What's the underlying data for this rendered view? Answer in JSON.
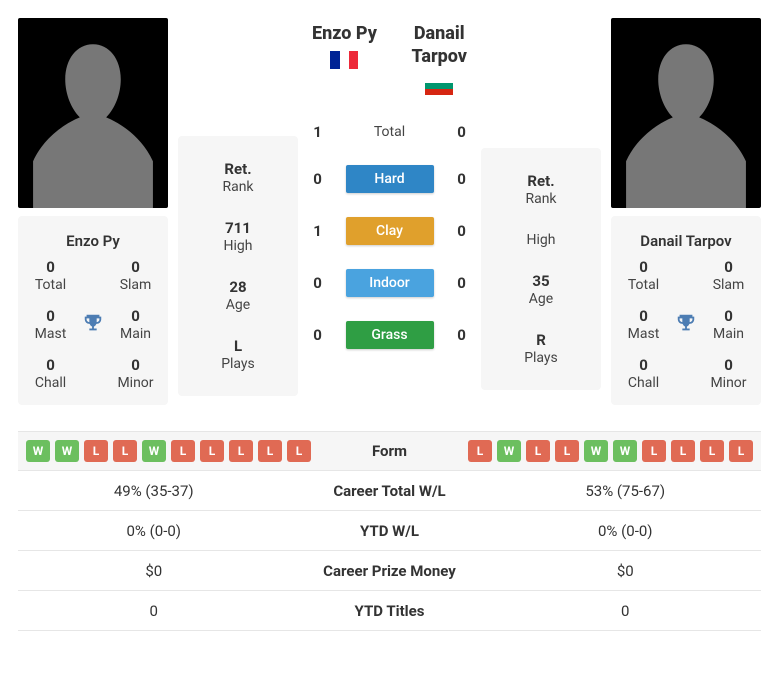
{
  "players": {
    "left": {
      "name_header": "Enzo Py",
      "flag": "fr",
      "card_name": "Enzo Py",
      "titles": {
        "total": {
          "value": "0",
          "label": "Total"
        },
        "slam": {
          "value": "0",
          "label": "Slam"
        },
        "mast": {
          "value": "0",
          "label": "Mast"
        },
        "main": {
          "value": "0",
          "label": "Main"
        },
        "chall": {
          "value": "0",
          "label": "Chall"
        },
        "minor": {
          "value": "0",
          "label": "Minor"
        }
      },
      "info": {
        "rank": {
          "value": "Ret.",
          "label": "Rank"
        },
        "high": {
          "value": "711",
          "label": "High"
        },
        "age": {
          "value": "28",
          "label": "Age"
        },
        "plays": {
          "value": "L",
          "label": "Plays"
        }
      },
      "form": [
        "W",
        "W",
        "L",
        "L",
        "W",
        "L",
        "L",
        "L",
        "L",
        "L"
      ]
    },
    "right": {
      "name_header": "Danail Tarpov",
      "name_header_l1": "Danail",
      "name_header_l2": "Tarpov",
      "flag": "bg",
      "card_name": "Danail Tarpov",
      "titles": {
        "total": {
          "value": "0",
          "label": "Total"
        },
        "slam": {
          "value": "0",
          "label": "Slam"
        },
        "mast": {
          "value": "0",
          "label": "Mast"
        },
        "main": {
          "value": "0",
          "label": "Main"
        },
        "chall": {
          "value": "0",
          "label": "Chall"
        },
        "minor": {
          "value": "0",
          "label": "Minor"
        }
      },
      "info": {
        "rank": {
          "value": "Ret.",
          "label": "Rank"
        },
        "high": {
          "value": "",
          "label": "High"
        },
        "age": {
          "value": "35",
          "label": "Age"
        },
        "plays": {
          "value": "R",
          "label": "Plays"
        }
      },
      "form": [
        "L",
        "W",
        "L",
        "L",
        "W",
        "W",
        "L",
        "L",
        "L",
        "L"
      ]
    }
  },
  "h2h": {
    "rows": [
      {
        "left": "1",
        "label": "Total",
        "right": "0",
        "pill": false
      },
      {
        "left": "0",
        "label": "Hard",
        "right": "0",
        "pill": true,
        "color": "#2f86c6"
      },
      {
        "left": "1",
        "label": "Clay",
        "right": "0",
        "pill": true,
        "color": "#e0a02c"
      },
      {
        "left": "0",
        "label": "Indoor",
        "right": "0",
        "pill": true,
        "color": "#4aa3df"
      },
      {
        "left": "0",
        "label": "Grass",
        "right": "0",
        "pill": true,
        "color": "#2f9e44"
      }
    ]
  },
  "compare": {
    "rows": [
      {
        "key": "form",
        "label": "Form"
      },
      {
        "key": "career",
        "label": "Career Total W/L",
        "left": "49% (35-37)",
        "right": "53% (75-67)"
      },
      {
        "key": "ytd",
        "label": "YTD W/L",
        "left": "0% (0-0)",
        "right": "0% (0-0)"
      },
      {
        "key": "prize",
        "label": "Career Prize Money",
        "left": "$0",
        "right": "$0"
      },
      {
        "key": "titles",
        "label": "YTD Titles",
        "left": "0",
        "right": "0"
      }
    ]
  },
  "colors": {
    "chip_win": "#6cbf5f",
    "chip_loss": "#e06a54",
    "trophy": "#4d7db3"
  }
}
